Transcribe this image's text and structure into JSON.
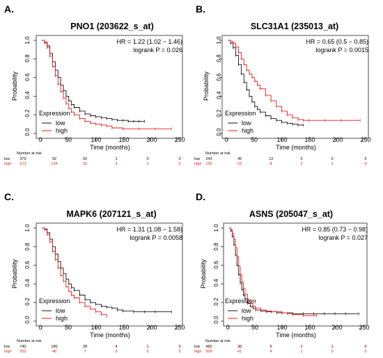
{
  "colors": {
    "low": "#111111",
    "high": "#e8191b",
    "axis": "#222222"
  },
  "chart_data": [
    {
      "type": "line",
      "panel_label": "A.",
      "title": "PNO1 (203622_s_at)",
      "hr_text": "HR = 1.22 (1.02 − 1.46)",
      "p_text": "logrank P = 0.026",
      "xlabel": "Time (months)",
      "ylabel": "Probability",
      "xlim": [
        0,
        250
      ],
      "ylim": [
        0,
        1
      ],
      "x_ticks": [
        "0",
        "50",
        "100",
        "150",
        "200",
        "250"
      ],
      "y_ticks": [
        "0.0",
        "0.2",
        "0.4",
        "0.6",
        "0.8",
        "1.0"
      ],
      "legend_title": "Expression",
      "risk_title": "Number at risk",
      "risk_times": [
        0,
        50,
        100,
        150,
        200,
        250
      ],
      "series": [
        {
          "name": "low",
          "color": "#111111",
          "risk": [
            "379",
            "92",
            "20",
            "1",
            "0",
            "0"
          ],
          "x": [
            0,
            5,
            10,
            15,
            20,
            25,
            30,
            35,
            40,
            45,
            50,
            55,
            60,
            70,
            80,
            90,
            100,
            110,
            120,
            130,
            140,
            150,
            160,
            170,
            180,
            190
          ],
          "y": [
            1.0,
            0.98,
            0.94,
            0.86,
            0.77,
            0.68,
            0.6,
            0.52,
            0.46,
            0.4,
            0.35,
            0.31,
            0.28,
            0.24,
            0.21,
            0.19,
            0.18,
            0.17,
            0.16,
            0.15,
            0.14,
            0.14,
            0.13,
            0.13,
            0.13,
            0.13
          ]
        },
        {
          "name": "high",
          "color": "#e8191b",
          "risk": [
            "613",
            "134",
            "15",
            "3",
            "1",
            "0"
          ],
          "x": [
            0,
            5,
            10,
            15,
            20,
            25,
            30,
            35,
            40,
            45,
            50,
            55,
            60,
            70,
            80,
            90,
            100,
            110,
            120,
            130,
            150,
            180,
            210,
            240
          ],
          "y": [
            1.0,
            0.97,
            0.92,
            0.83,
            0.72,
            0.62,
            0.53,
            0.45,
            0.38,
            0.32,
            0.27,
            0.23,
            0.2,
            0.16,
            0.13,
            0.11,
            0.1,
            0.09,
            0.08,
            0.06,
            0.05,
            0.05,
            0.05,
            0.05
          ]
        }
      ]
    },
    {
      "type": "line",
      "panel_label": "B.",
      "title": "SLC31A1 (235013_at)",
      "hr_text": "HR = 0.65 (0.5 − 0.85)",
      "p_text": "logrank P = 0.0015",
      "xlabel": "Time (months)",
      "ylabel": "Probability",
      "xlim": [
        0,
        250
      ],
      "ylim": [
        0,
        1
      ],
      "x_ticks": [
        "0",
        "50",
        "100",
        "150",
        "200",
        "250"
      ],
      "y_ticks": [
        "0.0",
        "0.2",
        "0.4",
        "0.6",
        "0.8",
        "1.0"
      ],
      "legend_title": "Expression",
      "risk_title": "Number at risk",
      "risk_times": [
        0,
        50,
        100,
        150,
        200,
        250
      ],
      "series": [
        {
          "name": "low",
          "color": "#111111",
          "risk": [
            "243",
            "45",
            "13",
            "0",
            "0",
            "0"
          ],
          "x": [
            0,
            5,
            10,
            15,
            20,
            25,
            30,
            35,
            40,
            45,
            50,
            55,
            60,
            70,
            80,
            90,
            100,
            110,
            120,
            130,
            140
          ],
          "y": [
            1.0,
            0.97,
            0.92,
            0.84,
            0.74,
            0.64,
            0.55,
            0.47,
            0.4,
            0.34,
            0.29,
            0.26,
            0.23,
            0.19,
            0.16,
            0.14,
            0.12,
            0.11,
            0.1,
            0.09,
            0.09
          ]
        },
        {
          "name": "high",
          "color": "#e8191b",
          "risk": [
            "155",
            "53",
            "8",
            "2",
            "1",
            "0"
          ],
          "x": [
            0,
            5,
            10,
            15,
            20,
            25,
            30,
            35,
            40,
            45,
            50,
            55,
            60,
            70,
            80,
            90,
            100,
            110,
            120,
            130,
            140,
            150,
            180,
            210,
            245
          ],
          "y": [
            1.0,
            0.99,
            0.97,
            0.93,
            0.87,
            0.8,
            0.74,
            0.68,
            0.64,
            0.6,
            0.56,
            0.52,
            0.48,
            0.41,
            0.35,
            0.29,
            0.24,
            0.2,
            0.17,
            0.15,
            0.14,
            0.14,
            0.14,
            0.14,
            0.14
          ]
        }
      ]
    },
    {
      "type": "line",
      "panel_label": "C.",
      "title": "MAPK6 (207121_s_at)",
      "hr_text": "HR = 1.31 (1.08 − 1.58)",
      "p_text": "logrank P = 0.0058",
      "xlabel": "Time (months)",
      "ylabel": "Probability",
      "xlim": [
        0,
        250
      ],
      "ylim": [
        0,
        1
      ],
      "x_ticks": [
        "0",
        "50",
        "100",
        "150",
        "200",
        "250"
      ],
      "y_ticks": [
        "0.0",
        "0.2",
        "0.4",
        "0.6",
        "0.8",
        "1.0"
      ],
      "legend_title": "Expression",
      "risk_title": "Number at risk",
      "risk_times": [
        0,
        50,
        100,
        150,
        200,
        250
      ],
      "series": [
        {
          "name": "low",
          "color": "#111111",
          "risk": [
            "740",
            "180",
            "28",
            "4",
            "1",
            "0"
          ],
          "x": [
            0,
            5,
            10,
            15,
            20,
            25,
            30,
            35,
            40,
            45,
            50,
            55,
            60,
            70,
            80,
            90,
            100,
            110,
            120,
            130,
            140,
            150,
            170,
            190,
            210,
            240
          ],
          "y": [
            1.0,
            0.99,
            0.95,
            0.88,
            0.8,
            0.72,
            0.64,
            0.57,
            0.51,
            0.45,
            0.4,
            0.36,
            0.33,
            0.28,
            0.23,
            0.2,
            0.18,
            0.16,
            0.15,
            0.14,
            0.12,
            0.11,
            0.1,
            0.1,
            0.1,
            0.1
          ]
        },
        {
          "name": "high",
          "color": "#e8191b",
          "risk": [
            "252",
            "46",
            "7",
            "0",
            "0",
            "0"
          ],
          "x": [
            0,
            5,
            10,
            15,
            20,
            25,
            30,
            35,
            40,
            45,
            50,
            55,
            60,
            70,
            80,
            90,
            100,
            110,
            120
          ],
          "y": [
            1.0,
            0.98,
            0.93,
            0.85,
            0.75,
            0.66,
            0.57,
            0.49,
            0.43,
            0.37,
            0.32,
            0.28,
            0.25,
            0.2,
            0.16,
            0.13,
            0.1,
            0.07,
            0.05
          ]
        }
      ]
    },
    {
      "type": "line",
      "panel_label": "D.",
      "title": "ASNS (205047_s_at)",
      "hr_text": "HR = 0.85 (0.73 − 0.98)",
      "p_text": "logrank P = 0.027",
      "xlabel": "Time (months)",
      "ylabel": "Probability",
      "xlim": [
        0,
        250
      ],
      "ylim": [
        0,
        1
      ],
      "x_ticks": [
        "0",
        "50",
        "100",
        "150",
        "200",
        "250"
      ],
      "y_ticks": [
        "0.0",
        "0.2",
        "0.4",
        "0.6",
        "0.8",
        "1.0"
      ],
      "legend_title": "Expression",
      "risk_title": "Number at risk",
      "risk_times": [
        0,
        50,
        100,
        150,
        200,
        250
      ],
      "series": [
        {
          "name": "low",
          "color": "#111111",
          "risk": [
            "482",
            "38",
            "9",
            "1",
            "1",
            "0"
          ],
          "x": [
            0,
            3,
            6,
            9,
            12,
            15,
            18,
            21,
            24,
            27,
            30,
            35,
            40,
            45,
            50,
            60,
            70,
            80,
            90,
            100,
            120,
            140,
            160,
            180,
            200,
            220,
            245
          ],
          "y": [
            1.0,
            0.97,
            0.91,
            0.82,
            0.71,
            0.6,
            0.5,
            0.41,
            0.34,
            0.28,
            0.24,
            0.19,
            0.16,
            0.14,
            0.12,
            0.11,
            0.1,
            0.1,
            0.09,
            0.09,
            0.08,
            0.08,
            0.08,
            0.08,
            0.08,
            0.08,
            0.08
          ]
        },
        {
          "name": "high",
          "color": "#e8191b",
          "risk": [
            "509",
            "41",
            "4",
            "1",
            "0",
            "0"
          ],
          "x": [
            0,
            3,
            6,
            9,
            12,
            15,
            18,
            21,
            24,
            27,
            30,
            35,
            40,
            45,
            50,
            60,
            70,
            80,
            90,
            100,
            110,
            120,
            140,
            165
          ],
          "y": [
            1.0,
            0.98,
            0.94,
            0.88,
            0.79,
            0.69,
            0.59,
            0.5,
            0.42,
            0.35,
            0.29,
            0.23,
            0.19,
            0.16,
            0.14,
            0.12,
            0.11,
            0.1,
            0.1,
            0.09,
            0.08,
            0.07,
            0.06,
            0.06
          ]
        }
      ]
    }
  ]
}
